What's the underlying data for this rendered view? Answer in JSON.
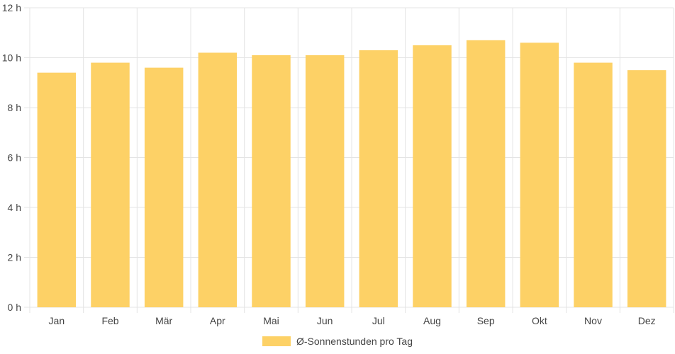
{
  "chart_data": {
    "type": "bar",
    "categories": [
      "Jan",
      "Feb",
      "Mär",
      "Apr",
      "Mai",
      "Jun",
      "Jul",
      "Aug",
      "Sep",
      "Okt",
      "Nov",
      "Dez"
    ],
    "series": [
      {
        "name": "Ø-Sonnenstunden pro Tag",
        "values": [
          9.4,
          9.8,
          9.6,
          10.2,
          10.1,
          10.1,
          10.3,
          10.5,
          10.7,
          10.6,
          9.8,
          9.5
        ]
      }
    ],
    "yticks": [
      "0 h",
      "2 h",
      "4 h",
      "6 h",
      "8 h",
      "10 h",
      "12 h"
    ],
    "ylim": [
      0,
      12
    ],
    "grid": true,
    "legend_position": "bottom",
    "colors": {
      "bar": "#fdd166",
      "grid": "#e4e4e4"
    }
  }
}
